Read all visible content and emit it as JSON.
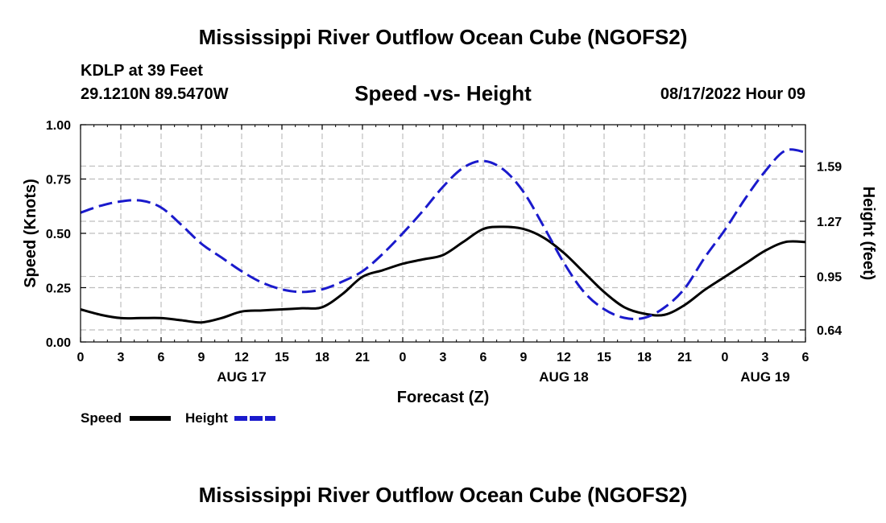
{
  "header": {
    "title": "Mississippi River Outflow Ocean Cube (NGOFS2)",
    "station": "KDLP at 39 Feet",
    "coords": "29.1210N  89.5470W",
    "date_hour": "08/17/2022 Hour 09",
    "bottom_title": "Mississippi River Outflow Ocean Cube (NGOFS2)"
  },
  "legend": {
    "speed_label": "Speed",
    "height_label": "Height"
  },
  "colors": {
    "speed": "#000000",
    "height": "#1a1acc",
    "grid": "#bdbdbd"
  },
  "chart_data": {
    "type": "line",
    "title": "Speed -vs- Height",
    "xlabel": "Forecast (Z)",
    "ylabel_left": "Speed (Knots)",
    "ylabel_right": "Height (feet)",
    "x_hours": [
      0,
      3,
      6,
      9,
      12,
      15,
      18,
      21,
      24,
      27,
      30,
      33,
      36,
      39,
      42,
      45,
      48,
      51,
      54
    ],
    "x_tick_labels": [
      "0",
      "3",
      "6",
      "9",
      "12",
      "15",
      "18",
      "21",
      "0",
      "3",
      "6",
      "9",
      "12",
      "15",
      "18",
      "21",
      "0",
      "3",
      "6"
    ],
    "date_labels": [
      {
        "hour": 12,
        "label": "AUG 17"
      },
      {
        "hour": 36,
        "label": "AUG 18"
      },
      {
        "hour": 51,
        "label": "AUG 19"
      }
    ],
    "xlim": [
      0,
      54
    ],
    "ylim_left": [
      0,
      1.0
    ],
    "left_ticks": [
      {
        "value": 0.0,
        "label": "0.00"
      },
      {
        "value": 0.25,
        "label": "0.25"
      },
      {
        "value": 0.5,
        "label": "0.50"
      },
      {
        "value": 0.75,
        "label": "0.75"
      },
      {
        "value": 1.0,
        "label": "1.00"
      }
    ],
    "ylim_right": [
      0.57,
      1.83
    ],
    "right_ticks": [
      {
        "value": 0.64,
        "label": "0.64"
      },
      {
        "value": 0.95,
        "label": "0.95"
      },
      {
        "value": 1.27,
        "label": "1.27"
      },
      {
        "value": 1.59,
        "label": "1.59"
      }
    ],
    "series": [
      {
        "name": "Speed",
        "axis": "left",
        "style": "solid",
        "x": [
          0,
          1.5,
          3,
          4.5,
          6,
          7.5,
          9,
          10.5,
          12,
          13.5,
          15,
          16.5,
          18,
          19.5,
          21,
          22.5,
          24,
          25.5,
          27,
          28.5,
          30,
          31.5,
          33,
          34.5,
          36,
          37.5,
          39,
          40.5,
          42,
          43.5,
          45,
          46.5,
          48,
          49.5,
          51,
          52.5,
          54
        ],
        "values": [
          0.15,
          0.125,
          0.11,
          0.11,
          0.11,
          0.1,
          0.09,
          0.11,
          0.14,
          0.145,
          0.15,
          0.155,
          0.16,
          0.22,
          0.3,
          0.33,
          0.36,
          0.38,
          0.4,
          0.46,
          0.52,
          0.53,
          0.52,
          0.48,
          0.41,
          0.32,
          0.23,
          0.16,
          0.13,
          0.125,
          0.17,
          0.24,
          0.3,
          0.36,
          0.42,
          0.46,
          0.46
        ]
      },
      {
        "name": "Height",
        "axis": "right",
        "style": "dashed",
        "x": [
          0,
          1.5,
          3,
          4.5,
          6,
          7.5,
          9,
          10.5,
          12,
          13.5,
          15,
          16.5,
          18,
          19.5,
          21,
          22.5,
          24,
          25.5,
          27,
          28.5,
          30,
          31.5,
          33,
          34.5,
          36,
          37.5,
          39,
          40.5,
          42,
          43.5,
          45,
          46.5,
          48,
          49.5,
          51,
          52.5,
          54
        ],
        "values": [
          1.32,
          1.36,
          1.385,
          1.39,
          1.35,
          1.25,
          1.14,
          1.06,
          0.98,
          0.915,
          0.875,
          0.86,
          0.875,
          0.92,
          0.98,
          1.08,
          1.2,
          1.33,
          1.47,
          1.58,
          1.62,
          1.57,
          1.44,
          1.24,
          1.03,
          0.86,
          0.76,
          0.71,
          0.71,
          0.77,
          0.88,
          1.06,
          1.22,
          1.4,
          1.56,
          1.68,
          1.67
        ]
      }
    ]
  }
}
